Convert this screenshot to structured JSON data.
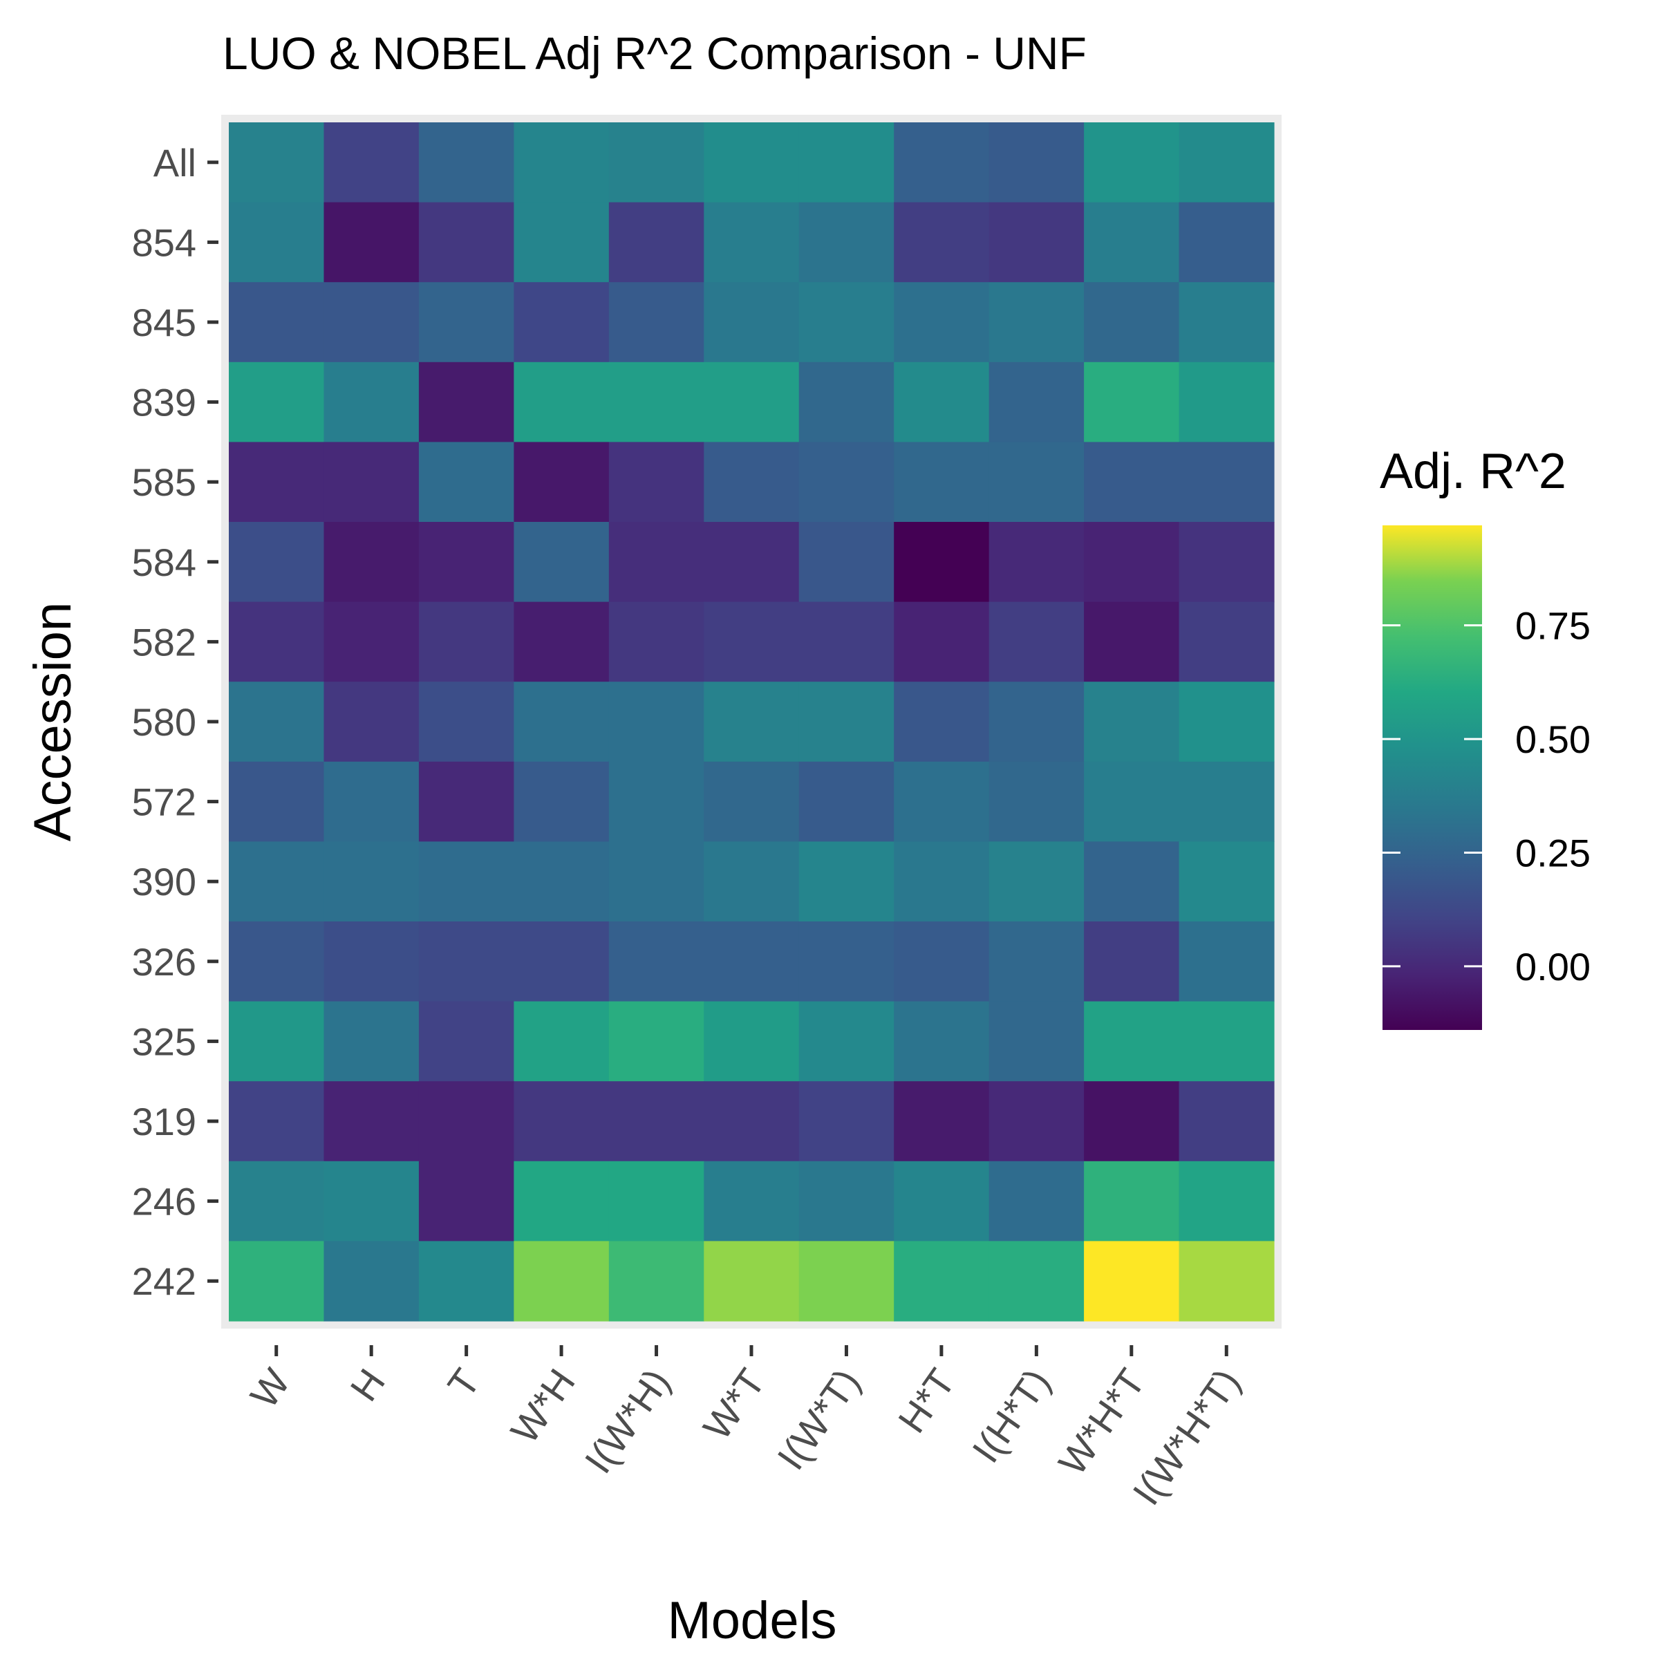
{
  "chart_data": {
    "type": "heatmap",
    "title": "LUO & NOBEL Adj R^2 Comparison - UNF",
    "xlabel": "Models",
    "ylabel": "Accession",
    "x_categories": [
      "W",
      "H",
      "T",
      "W*H",
      "I(W*H)",
      "W*T",
      "I(W*T)",
      "H*T",
      "I(H*T)",
      "W*H*T",
      "I(W*H*T)"
    ],
    "y_categories": [
      "All",
      "854",
      "845",
      "839",
      "585",
      "584",
      "582",
      "580",
      "572",
      "390",
      "326",
      "325",
      "319",
      "246",
      "242"
    ],
    "values": [
      [
        0.4,
        0.1,
        0.25,
        0.42,
        0.4,
        0.46,
        0.46,
        0.23,
        0.21,
        0.5,
        0.45
      ],
      [
        0.38,
        -0.07,
        0.06,
        0.42,
        0.08,
        0.38,
        0.33,
        0.08,
        0.06,
        0.38,
        0.22
      ],
      [
        0.19,
        0.19,
        0.25,
        0.12,
        0.21,
        0.35,
        0.38,
        0.31,
        0.35,
        0.27,
        0.38
      ],
      [
        0.55,
        0.38,
        -0.05,
        0.55,
        0.55,
        0.55,
        0.27,
        0.45,
        0.25,
        0.63,
        0.53
      ],
      [
        0.0,
        0.0,
        0.29,
        -0.06,
        0.04,
        0.21,
        0.23,
        0.27,
        0.27,
        0.21,
        0.21
      ],
      [
        0.15,
        -0.05,
        -0.02,
        0.25,
        0.02,
        0.02,
        0.19,
        -0.14,
        0.0,
        -0.02,
        0.04
      ],
      [
        0.04,
        -0.02,
        0.06,
        -0.04,
        0.06,
        0.08,
        0.08,
        -0.02,
        0.08,
        -0.06,
        0.08
      ],
      [
        0.33,
        0.06,
        0.15,
        0.31,
        0.31,
        0.4,
        0.4,
        0.19,
        0.25,
        0.4,
        0.48
      ],
      [
        0.19,
        0.29,
        0.0,
        0.21,
        0.31,
        0.27,
        0.21,
        0.31,
        0.27,
        0.38,
        0.38
      ],
      [
        0.31,
        0.31,
        0.29,
        0.29,
        0.31,
        0.35,
        0.42,
        0.35,
        0.4,
        0.25,
        0.44
      ],
      [
        0.19,
        0.15,
        0.13,
        0.13,
        0.23,
        0.23,
        0.23,
        0.21,
        0.27,
        0.08,
        0.31
      ],
      [
        0.52,
        0.33,
        0.1,
        0.57,
        0.63,
        0.54,
        0.44,
        0.33,
        0.27,
        0.57,
        0.57
      ],
      [
        0.1,
        -0.02,
        -0.02,
        0.06,
        0.06,
        0.06,
        0.1,
        -0.05,
        0.0,
        -0.08,
        0.08
      ],
      [
        0.4,
        0.42,
        -0.02,
        0.6,
        0.6,
        0.38,
        0.35,
        0.42,
        0.29,
        0.65,
        0.58
      ],
      [
        0.65,
        0.35,
        0.44,
        0.85,
        0.7,
        0.87,
        0.85,
        0.63,
        0.63,
        0.97,
        0.89
      ]
    ],
    "legend": {
      "title": "Adj. R^2",
      "position": "right",
      "colormap": "viridis",
      "range": [
        -0.14,
        0.97
      ],
      "breaks": [
        0.75,
        0.5,
        0.25,
        0.0
      ],
      "break_labels": [
        "0.75",
        "0.50",
        "0.25",
        "0.00"
      ]
    },
    "grid": true
  }
}
